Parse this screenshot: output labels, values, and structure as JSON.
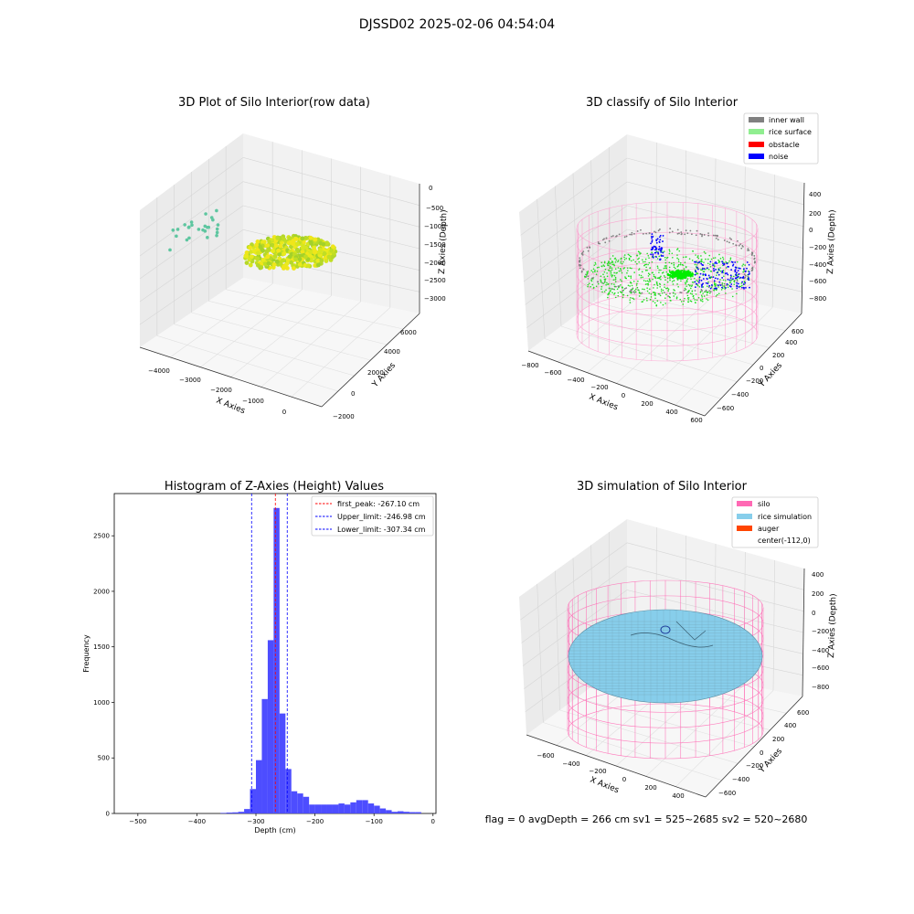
{
  "figure": {
    "suptitle": "DJSSD02 2025-02-06 04:54:04",
    "status_text": "flag = 0     avgDepth = 266 cm  sv1 = 525~2685  sv2 = 520~2680"
  },
  "chart_data": [
    {
      "type": "scatter",
      "projection": "3d",
      "title": "3D Plot of Silo Interior(row data)",
      "xlabel": "X Axies",
      "ylabel": "Y Axies",
      "zlabel": "Z Axies (Depth)",
      "x_ticks": [
        "−4000",
        "−3000",
        "−2000",
        "−1000",
        "0"
      ],
      "y_ticks": [
        "−2000",
        "0",
        "2000",
        "4000",
        "6000"
      ],
      "z_ticks": [
        "0",
        "−500",
        "−1000",
        "−1500",
        "−2000",
        "−2500",
        "−3000"
      ],
      "grid": true,
      "colormap": "viridis",
      "point_groups": [
        {
          "x_range": [
            -4300,
            -3000
          ],
          "y_range": [
            3000,
            4500
          ],
          "z_range": [
            -1600,
            -1200
          ],
          "color": "#5ec6a0"
        },
        {
          "x_range": [
            -2300,
            -500
          ],
          "y_range": [
            -500,
            3500
          ],
          "z_range": [
            -2400,
            -1300
          ],
          "color": "#c5e021"
        }
      ]
    },
    {
      "type": "scatter",
      "projection": "3d",
      "title": "3D classify of Silo Interior",
      "xlabel": "X Axies",
      "ylabel": "Y Axies",
      "zlabel": "Z Axies (Depth)",
      "x_ticks": [
        "−800",
        "−600",
        "−400",
        "−200",
        "0",
        "200",
        "400",
        "600"
      ],
      "y_ticks": [
        "−600",
        "−400",
        "−200",
        "0",
        "200",
        "400",
        "600"
      ],
      "z_ticks": [
        "400",
        "200",
        "0",
        "−200",
        "−400",
        "−600",
        "−800"
      ],
      "grid": true,
      "legend": {
        "position": "upper right",
        "entries": [
          {
            "label": "inner wall",
            "color": "#808080"
          },
          {
            "label": "rice surface",
            "color": "#90ee90"
          },
          {
            "label": "obstacle",
            "color": "#ff0000"
          },
          {
            "label": "noise",
            "color": "#0000ff"
          }
        ]
      },
      "silo_wireframe_color": "#ff8fc8"
    },
    {
      "type": "bar",
      "title": "Histogram of Z-Axies (Height) Values",
      "xlabel": "Depth (cm)",
      "ylabel": "Frequency",
      "xlim": [
        -540,
        5
      ],
      "ylim": [
        0,
        2880
      ],
      "x_ticks": [
        "−500",
        "−400",
        "−300",
        "−200",
        "−100",
        "0"
      ],
      "y_ticks": [
        "0",
        "500",
        "1000",
        "1500",
        "2000",
        "2500"
      ],
      "bar_color": "#4d4dff",
      "bins": [
        {
          "x0": -360,
          "x1": -350,
          "value": 5
        },
        {
          "x0": -350,
          "x1": -340,
          "value": 8
        },
        {
          "x0": -340,
          "x1": -330,
          "value": 10
        },
        {
          "x0": -330,
          "x1": -320,
          "value": 15
        },
        {
          "x0": -320,
          "x1": -310,
          "value": 40
        },
        {
          "x0": -310,
          "x1": -300,
          "value": 220
        },
        {
          "x0": -300,
          "x1": -290,
          "value": 480
        },
        {
          "x0": -290,
          "x1": -280,
          "value": 1030
        },
        {
          "x0": -280,
          "x1": -270,
          "value": 1560
        },
        {
          "x0": -270,
          "x1": -260,
          "value": 2750
        },
        {
          "x0": -260,
          "x1": -250,
          "value": 900
        },
        {
          "x0": -250,
          "x1": -240,
          "value": 400
        },
        {
          "x0": -240,
          "x1": -230,
          "value": 200
        },
        {
          "x0": -230,
          "x1": -220,
          "value": 180
        },
        {
          "x0": -220,
          "x1": -210,
          "value": 150
        },
        {
          "x0": -210,
          "x1": -200,
          "value": 80
        },
        {
          "x0": -200,
          "x1": -190,
          "value": 80
        },
        {
          "x0": -190,
          "x1": -180,
          "value": 80
        },
        {
          "x0": -180,
          "x1": -170,
          "value": 80
        },
        {
          "x0": -170,
          "x1": -160,
          "value": 80
        },
        {
          "x0": -160,
          "x1": -150,
          "value": 90
        },
        {
          "x0": -150,
          "x1": -140,
          "value": 80
        },
        {
          "x0": -140,
          "x1": -130,
          "value": 100
        },
        {
          "x0": -130,
          "x1": -120,
          "value": 120
        },
        {
          "x0": -120,
          "x1": -110,
          "value": 120
        },
        {
          "x0": -110,
          "x1": -100,
          "value": 90
        },
        {
          "x0": -100,
          "x1": -90,
          "value": 70
        },
        {
          "x0": -90,
          "x1": -80,
          "value": 45
        },
        {
          "x0": -80,
          "x1": -70,
          "value": 30
        },
        {
          "x0": -70,
          "x1": -60,
          "value": 15
        },
        {
          "x0": -60,
          "x1": -50,
          "value": 20
        },
        {
          "x0": -50,
          "x1": -40,
          "value": 15
        },
        {
          "x0": -40,
          "x1": -30,
          "value": 12
        },
        {
          "x0": -30,
          "x1": -20,
          "value": 12
        }
      ],
      "vlines": [
        {
          "label": "first_peak: -267.10 cm",
          "x": -267.1,
          "color": "#ff0000"
        },
        {
          "label": "Upper_limit: -246.98 cm",
          "x": -246.98,
          "color": "#0000ff"
        },
        {
          "label": "Lower_limit: -307.34 cm",
          "x": -307.34,
          "color": "#0000ff"
        }
      ],
      "legend": {
        "position": "upper right"
      }
    },
    {
      "type": "scatter",
      "projection": "3d",
      "title": "3D simulation of Silo Interior",
      "xlabel": "X Axies",
      "ylabel": "Y Axies",
      "zlabel": "Z Axies (Depth)",
      "x_ticks": [
        "−600",
        "−400",
        "−200",
        "0",
        "200",
        "400"
      ],
      "y_ticks": [
        "−600",
        "−400",
        "−200",
        "0",
        "200",
        "400",
        "600"
      ],
      "z_ticks": [
        "400",
        "200",
        "0",
        "−200",
        "−400",
        "−600",
        "−800"
      ],
      "grid": true,
      "legend": {
        "position": "upper right",
        "entries": [
          {
            "label": "silo",
            "color": "#ff69b4"
          },
          {
            "label": "rice simulation",
            "color": "#87ceeb"
          },
          {
            "label": "auger",
            "color": "#ff4500"
          },
          {
            "label": "center(-112,0)",
            "color": "#ffffff"
          }
        ]
      },
      "silo_wireframe_color": "#ff69b4",
      "surface_color": "#87ceeb"
    }
  ]
}
